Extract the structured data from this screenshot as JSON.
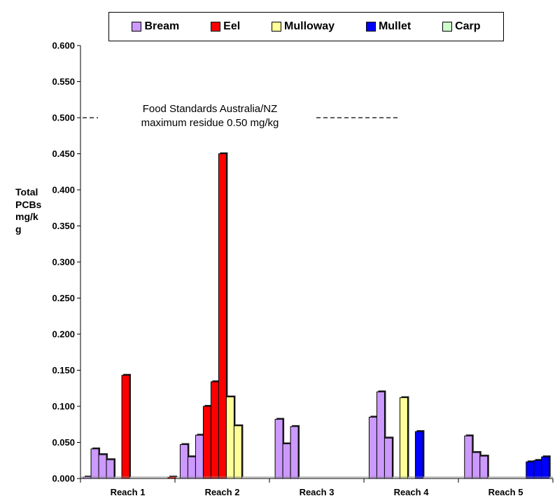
{
  "chart_data": {
    "type": "bar",
    "legend": {
      "position": "top",
      "entries": [
        {
          "name": "Bream",
          "color": "#cc99ff"
        },
        {
          "name": "Eel",
          "color": "#ff0000"
        },
        {
          "name": "Mulloway",
          "color": "#ffff99"
        },
        {
          "name": "Mullet",
          "color": "#0000ff"
        },
        {
          "name": "Carp",
          "color": "#ccffcc"
        }
      ]
    },
    "ylabel": "Total PCBs mg/kg",
    "ylim": [
      0,
      0.6
    ],
    "yticks": [
      "0.000",
      "0.050",
      "0.100",
      "0.150",
      "0.200",
      "0.250",
      "0.300",
      "0.350",
      "0.400",
      "0.450",
      "0.500",
      "0.550",
      "0.600"
    ],
    "categories": [
      "Reach 1",
      "Reach 2",
      "Reach 3",
      "Reach 4",
      "Reach 5"
    ],
    "grid": false,
    "reference_line": {
      "value": 0.5,
      "label": "Food Standards Australia/NZ\nmaximum residue 0.50 mg/kg"
    },
    "bars": [
      {
        "category": "Reach 1",
        "species": "Bream",
        "value": 0.002
      },
      {
        "category": "Reach 1",
        "species": "Bream",
        "value": 0.041
      },
      {
        "category": "Reach 1",
        "species": "Bream",
        "value": 0.033
      },
      {
        "category": "Reach 1",
        "species": "Bream",
        "value": 0.026
      },
      {
        "category": "Reach 1",
        "species": "Eel",
        "value": 0.143
      },
      {
        "category": "Reach 1",
        "species": "Eel",
        "value": 0.002
      },
      {
        "category": "Reach 2",
        "species": "Bream",
        "value": 0.047
      },
      {
        "category": "Reach 2",
        "species": "Bream",
        "value": 0.03
      },
      {
        "category": "Reach 2",
        "species": "Bream",
        "value": 0.06
      },
      {
        "category": "Reach 2",
        "species": "Eel",
        "value": 0.1
      },
      {
        "category": "Reach 2",
        "species": "Eel",
        "value": 0.134
      },
      {
        "category": "Reach 2",
        "species": "Eel",
        "value": 0.45
      },
      {
        "category": "Reach 2",
        "species": "Mulloway",
        "value": 0.113
      },
      {
        "category": "Reach 2",
        "species": "Mulloway",
        "value": 0.073
      },
      {
        "category": "Reach 3",
        "species": "Bream",
        "value": 0.082
      },
      {
        "category": "Reach 3",
        "species": "Bream",
        "value": 0.048
      },
      {
        "category": "Reach 3",
        "species": "Bream",
        "value": 0.072
      },
      {
        "category": "Reach 4",
        "species": "Bream",
        "value": 0.085
      },
      {
        "category": "Reach 4",
        "species": "Bream",
        "value": 0.12
      },
      {
        "category": "Reach 4",
        "species": "Bream",
        "value": 0.056
      },
      {
        "category": "Reach 4",
        "species": "Mulloway",
        "value": 0.112
      },
      {
        "category": "Reach 4",
        "species": "Mullet",
        "value": 0.065
      },
      {
        "category": "Reach 5",
        "species": "Bream",
        "value": 0.059
      },
      {
        "category": "Reach 5",
        "species": "Bream",
        "value": 0.036
      },
      {
        "category": "Reach 5",
        "species": "Bream",
        "value": 0.031
      },
      {
        "category": "Reach 5",
        "species": "Mullet",
        "value": 0.023
      },
      {
        "category": "Reach 5",
        "species": "Mullet",
        "value": 0.025
      },
      {
        "category": "Reach 5",
        "species": "Mullet",
        "value": 0.03
      }
    ]
  }
}
